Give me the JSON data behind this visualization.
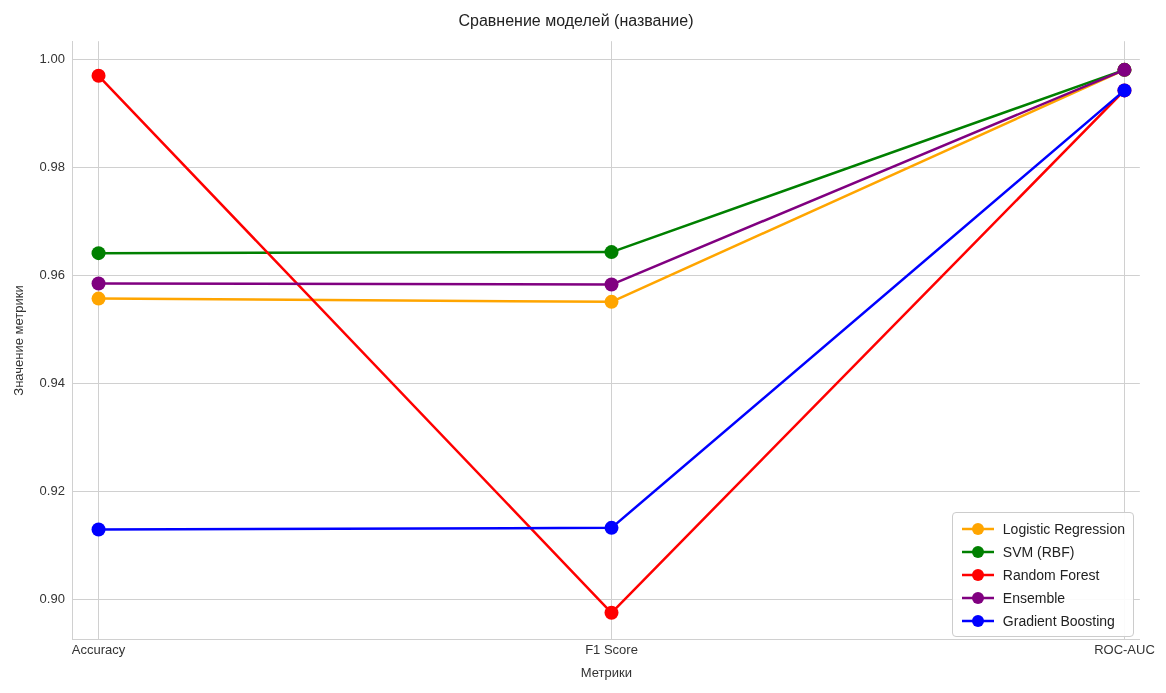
{
  "chart_data": {
    "type": "line",
    "title": "Сравнение моделей (название)",
    "xlabel": "Метрики",
    "ylabel": "Значение метрики",
    "categories": [
      "Accuracy",
      "F1 Score",
      "ROC-AUC"
    ],
    "series": [
      {
        "name": "Logistic Regression",
        "color": "#ffa500",
        "values": [
          0.9557,
          0.9551,
          0.998
        ]
      },
      {
        "name": "SVM (RBF)",
        "color": "#008000",
        "values": [
          0.9641,
          0.9643,
          0.998
        ]
      },
      {
        "name": "Random Forest",
        "color": "#ff0000",
        "values": [
          0.9969,
          0.8976,
          0.9942
        ]
      },
      {
        "name": "Ensemble",
        "color": "#800080",
        "values": [
          0.9585,
          0.9583,
          0.998
        ]
      },
      {
        "name": "Gradient Boosting",
        "color": "#0000ff",
        "values": [
          0.913,
          0.9133,
          0.9942
        ]
      }
    ],
    "ylim": [
      0.8926,
      1.0033
    ],
    "yticks": [
      {
        "value": 0.9,
        "label": "0.90"
      },
      {
        "value": 0.92,
        "label": "0.92"
      },
      {
        "value": 0.94,
        "label": "0.94"
      },
      {
        "value": 0.96,
        "label": "0.96"
      },
      {
        "value": 0.98,
        "label": "0.98"
      },
      {
        "value": 1.0,
        "label": "1.00"
      }
    ],
    "grid": true,
    "legend": "bottom right",
    "marker": "circle",
    "line_style": "solid"
  }
}
